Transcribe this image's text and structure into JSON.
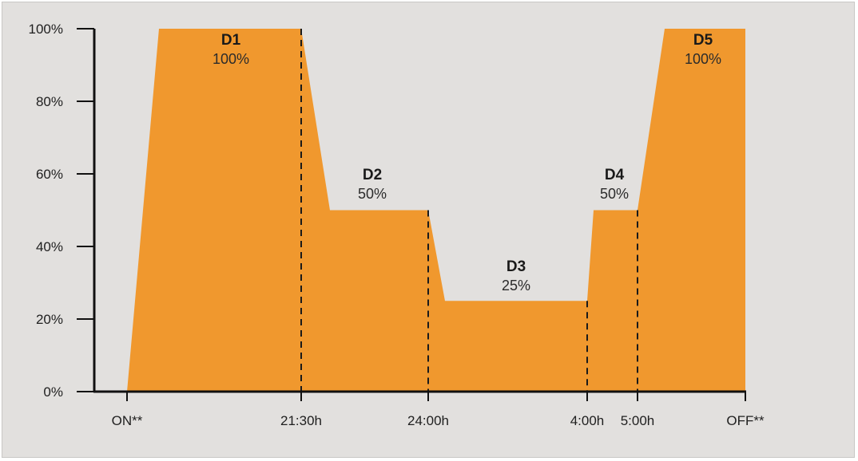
{
  "colors": {
    "background": "#e2e0de",
    "fill": "#f0982e",
    "axis": "#111111",
    "text": "#1f1f1f"
  },
  "chart_data": {
    "type": "area",
    "title": "",
    "xlabel": "",
    "ylabel": "",
    "ylim": [
      0,
      100
    ],
    "y_ticks": [
      "0%",
      "20%",
      "40%",
      "60%",
      "80%",
      "100%"
    ],
    "x_ticks": [
      "ON**",
      "21:30h",
      "24:00h",
      "4:00h",
      "5:00h",
      "OFF**"
    ],
    "series": [
      {
        "points": [
          {
            "x": "ON**",
            "y": 0
          },
          {
            "x": "ON** + ramp",
            "y": 100
          },
          {
            "x": "21:30h",
            "y": 100
          },
          {
            "x": "21:30h + ramp",
            "y": 50
          },
          {
            "x": "24:00h",
            "y": 50
          },
          {
            "x": "24:00h + ramp",
            "y": 25
          },
          {
            "x": "4:00h",
            "y": 25
          },
          {
            "x": "4:00h + ramp",
            "y": 50
          },
          {
            "x": "5:00h",
            "y": 50
          },
          {
            "x": "5:00h + ramp",
            "y": 100
          },
          {
            "x": "OFF**",
            "y": 100
          }
        ]
      }
    ],
    "segments": [
      {
        "name": "D1",
        "value_label": "100%",
        "value": 100
      },
      {
        "name": "D2",
        "value_label": "50%",
        "value": 50
      },
      {
        "name": "D3",
        "value_label": "25%",
        "value": 25
      },
      {
        "name": "D4",
        "value_label": "50%",
        "value": 50
      },
      {
        "name": "D5",
        "value_label": "100%",
        "value": 100
      }
    ],
    "dashed_markers": [
      "21:30h",
      "24:00h",
      "4:00h",
      "5:00h"
    ],
    "grid": false,
    "legend": "none"
  }
}
